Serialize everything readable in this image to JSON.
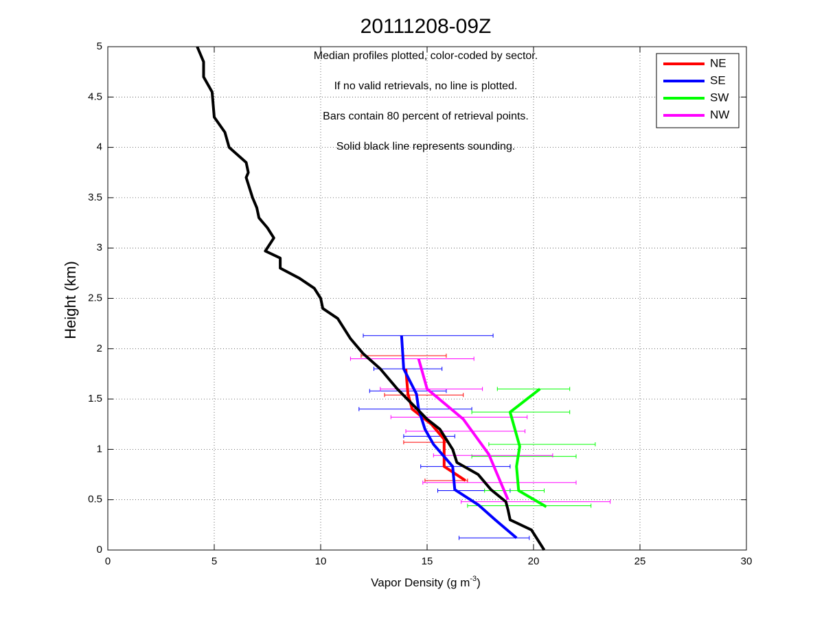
{
  "chart_data": {
    "type": "profile",
    "title": "20111208-09Z",
    "xlabel": [
      "Vapor Density (g m",
      "-3",
      ")"
    ],
    "ylabel": "Height (km)",
    "annotations": [
      "Median profiles plotted, color-coded by sector.",
      "If no valid retrievals, no line is plotted.",
      "Bars contain 80 percent of retrieval points.",
      "Solid black line represents sounding."
    ],
    "xlim": [
      0,
      30
    ],
    "ylim": [
      0,
      5
    ],
    "xticks": [
      0,
      5,
      10,
      15,
      20,
      25,
      30
    ],
    "yticks": [
      0,
      0.5,
      1,
      1.5,
      2,
      2.5,
      3,
      3.5,
      4,
      4.5,
      5
    ],
    "grid": true,
    "legend": "upper right",
    "series": [
      {
        "name": "NE",
        "color": "#ff0000",
        "heights": [
          1.8,
          1.55,
          1.4,
          1.25,
          1.1,
          1.0,
          0.83,
          0.69
        ],
        "values": [
          14.0,
          14.1,
          14.3,
          15.2,
          15.8,
          15.8,
          15.8,
          16.8
        ],
        "bars": {
          "heights": [
            1.93,
            1.54,
            1.07,
            0.69
          ],
          "low": [
            11.9,
            13.0,
            13.9,
            14.9
          ],
          "high": [
            15.9,
            16.7,
            16.0,
            16.9
          ]
        }
      },
      {
        "name": "SE",
        "color": "#0000ff",
        "heights": [
          2.13,
          1.8,
          1.55,
          1.4,
          1.2,
          1.05,
          0.83,
          0.6,
          0.45,
          0.3,
          0.12
        ],
        "values": [
          13.8,
          13.9,
          14.5,
          14.6,
          14.9,
          15.3,
          16.2,
          16.3,
          17.4,
          18.2,
          19.2
        ],
        "bars": {
          "heights": [
            2.13,
            1.8,
            1.58,
            1.4,
            1.13,
            0.83,
            0.59,
            0.12
          ],
          "low": [
            12.0,
            12.5,
            12.3,
            11.8,
            13.9,
            14.7,
            15.5,
            16.5
          ],
          "high": [
            18.1,
            15.7,
            15.9,
            17.1,
            16.3,
            18.9,
            18.9,
            19.8
          ]
        }
      },
      {
        "name": "SW",
        "color": "#00ff00",
        "heights": [
          1.6,
          1.37,
          1.03,
          0.83,
          0.59,
          0.43
        ],
        "values": [
          20.3,
          18.9,
          19.35,
          19.2,
          19.3,
          20.6
        ],
        "bars": {
          "heights": [
            1.6,
            1.37,
            1.05,
            0.93,
            0.59,
            0.44
          ],
          "low": [
            18.3,
            17.1,
            17.9,
            17.1,
            17.7,
            16.9
          ],
          "high": [
            21.7,
            21.7,
            22.9,
            22.0,
            20.5,
            22.7
          ]
        }
      },
      {
        "name": "NW",
        "color": "#ff00ff",
        "heights": [
          1.9,
          1.6,
          1.3,
          0.95,
          0.5
        ],
        "values": [
          14.6,
          15.0,
          16.7,
          17.9,
          18.8
        ],
        "bars": {
          "heights": [
            1.9,
            1.6,
            1.32,
            1.18,
            0.94,
            0.67,
            0.48
          ],
          "low": [
            11.4,
            12.8,
            13.3,
            14.0,
            15.3,
            14.8,
            16.6
          ],
          "high": [
            17.2,
            17.6,
            19.7,
            19.6,
            20.9,
            22.0,
            23.6
          ]
        }
      }
    ],
    "sounding": {
      "color": "#000000",
      "heights": [
        5.0,
        4.85,
        4.7,
        4.55,
        4.3,
        4.15,
        4.0,
        3.85,
        3.75,
        3.7,
        3.5,
        3.4,
        3.3,
        3.2,
        3.1,
        2.97,
        2.9,
        2.8,
        2.7,
        2.6,
        2.5,
        2.4,
        2.3,
        2.1,
        1.95,
        1.8,
        1.6,
        1.45,
        1.3,
        1.2,
        1.0,
        0.87,
        0.75,
        0.6,
        0.48,
        0.4,
        0.3,
        0.2,
        0.1,
        0.0
      ],
      "values": [
        4.2,
        4.5,
        4.5,
        4.9,
        5.0,
        5.5,
        5.7,
        6.5,
        6.6,
        6.5,
        6.8,
        7.0,
        7.1,
        7.5,
        7.8,
        7.4,
        8.1,
        8.1,
        9.0,
        9.7,
        10.0,
        10.1,
        10.8,
        11.4,
        12.0,
        12.8,
        13.6,
        14.3,
        15.0,
        15.6,
        16.2,
        16.4,
        17.4,
        18.0,
        18.7,
        18.8,
        18.9,
        19.9,
        20.2,
        20.5
      ]
    }
  }
}
